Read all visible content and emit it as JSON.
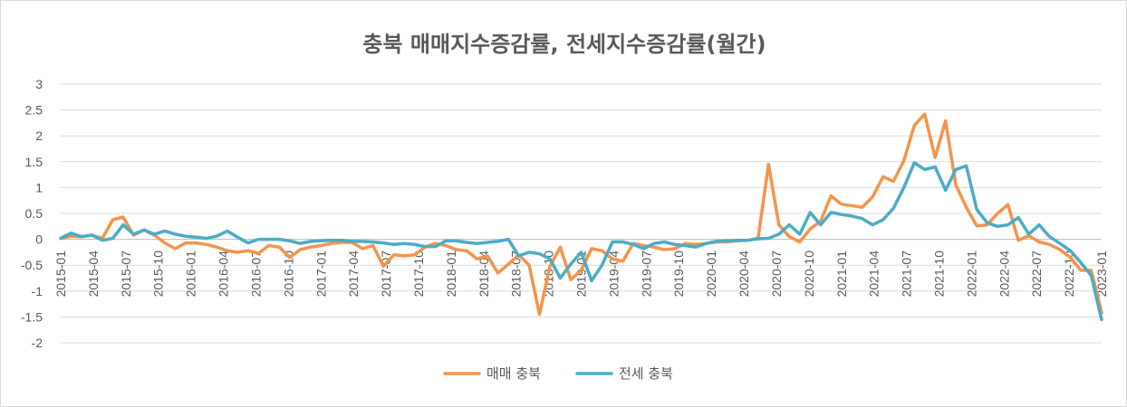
{
  "chart_data": {
    "type": "line",
    "title": "충북 매매지수증감률, 전세지수증감률(월간)",
    "xlabel": "",
    "ylabel": "",
    "ylim": [
      -2,
      3
    ],
    "yticks": [
      "3",
      "2.5",
      "2",
      "1.5",
      "1",
      "0.5",
      "0",
      "-0.5",
      "-1",
      "-1.5",
      "-2"
    ],
    "ytick_values": [
      3,
      2.5,
      2,
      1.5,
      1,
      0.5,
      0,
      -0.5,
      -1,
      -1.5,
      -2
    ],
    "x_tick_labels": [
      "2015-01",
      "2015-04",
      "2015-07",
      "2015-10",
      "2016-01",
      "2016-04",
      "2016-07",
      "2016-10",
      "2017-01",
      "2017-04",
      "2017-07",
      "2017-10",
      "2018-01",
      "2018-04",
      "2018-07",
      "2018-10",
      "2019-01",
      "2019-04",
      "2019-07",
      "2019-10",
      "2020-01",
      "2020-04",
      "2020-07",
      "2020-10",
      "2021-01",
      "2021-04",
      "2021-07",
      "2021-10",
      "2022-01",
      "2022-04",
      "2022-07",
      "2022-10",
      "2023-01"
    ],
    "x_start": "2015-01",
    "x_end": "2023-01",
    "grid": true,
    "legend_position": "bottom",
    "series": [
      {
        "name": "매매 충북",
        "color": "#f4944a",
        "values": [
          0.02,
          0.06,
          0.05,
          0.08,
          0.02,
          0.38,
          0.43,
          0.08,
          0.18,
          0.08,
          -0.07,
          -0.18,
          -0.07,
          -0.07,
          -0.1,
          -0.15,
          -0.22,
          -0.25,
          -0.22,
          -0.27,
          -0.12,
          -0.15,
          -0.35,
          -0.2,
          -0.15,
          -0.12,
          -0.08,
          -0.06,
          -0.06,
          -0.18,
          -0.12,
          -0.52,
          -0.3,
          -0.32,
          -0.3,
          -0.15,
          -0.08,
          -0.12,
          -0.2,
          -0.22,
          -0.38,
          -0.32,
          -0.65,
          -0.48,
          -0.3,
          -0.5,
          -1.45,
          -0.52,
          -0.15,
          -0.78,
          -0.6,
          -0.18,
          -0.22,
          -0.38,
          -0.42,
          -0.08,
          -0.12,
          -0.15,
          -0.2,
          -0.18,
          -0.08,
          -0.1,
          -0.08,
          -0.05,
          -0.05,
          -0.03,
          -0.02,
          0.02,
          1.45,
          0.28,
          0.05,
          -0.05,
          0.2,
          0.35,
          0.84,
          0.68,
          0.65,
          0.62,
          0.82,
          1.21,
          1.12,
          1.52,
          2.2,
          2.42,
          1.58,
          2.29,
          1.05,
          0.62,
          0.26,
          0.28,
          0.5,
          0.67,
          -0.02,
          0.07,
          -0.05,
          -0.1,
          -0.2,
          -0.35,
          -0.6,
          -0.6,
          -1.42
        ]
      },
      {
        "name": "전세 충북",
        "color": "#4bacc6",
        "values": [
          0.02,
          0.12,
          0.05,
          0.08,
          -0.02,
          0.02,
          0.28,
          0.1,
          0.18,
          0.1,
          0.16,
          0.1,
          0.06,
          0.04,
          0.02,
          0.06,
          0.16,
          0.04,
          -0.07,
          0.0,
          0.0,
          0.0,
          -0.03,
          -0.08,
          -0.04,
          -0.03,
          -0.02,
          -0.02,
          -0.04,
          -0.04,
          -0.05,
          -0.07,
          -0.1,
          -0.08,
          -0.1,
          -0.14,
          -0.14,
          -0.03,
          -0.03,
          -0.06,
          -0.08,
          -0.06,
          -0.04,
          0.0,
          -0.32,
          -0.25,
          -0.28,
          -0.38,
          -0.75,
          -0.48,
          -0.25,
          -0.8,
          -0.5,
          -0.05,
          -0.05,
          -0.1,
          -0.18,
          -0.08,
          -0.05,
          -0.1,
          -0.12,
          -0.15,
          -0.08,
          -0.04,
          -0.03,
          -0.02,
          -0.02,
          0.01,
          0.02,
          0.1,
          0.28,
          0.1,
          0.52,
          0.28,
          0.52,
          0.48,
          0.45,
          0.4,
          0.28,
          0.38,
          0.6,
          1.0,
          1.48,
          1.35,
          1.4,
          0.95,
          1.35,
          1.42,
          0.58,
          0.32,
          0.25,
          0.28,
          0.42,
          0.1,
          0.28,
          0.05,
          -0.08,
          -0.22,
          -0.45,
          -0.7,
          -1.55
        ]
      }
    ]
  }
}
